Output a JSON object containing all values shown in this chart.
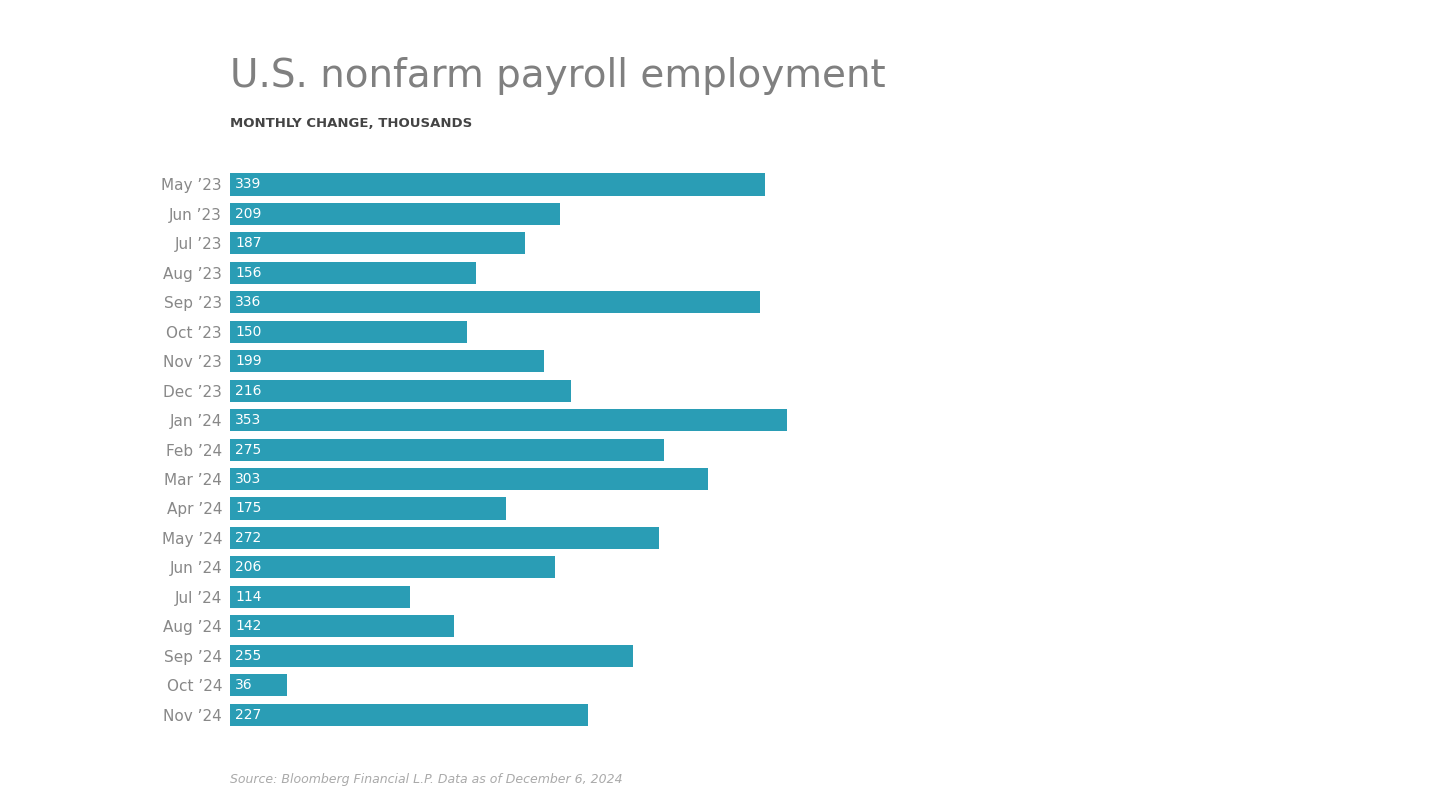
{
  "title": "U.S. nonfarm payroll employment",
  "subtitle": "MONTHLY CHANGE, THOUSANDS",
  "source": "Source: Bloomberg Financial L.P. Data as of December 6, 2024",
  "categories": [
    "May ’23",
    "Jun ’23",
    "Jul ’23",
    "Aug ’23",
    "Sep ’23",
    "Oct ’23",
    "Nov ’23",
    "Dec ’23",
    "Jan ’24",
    "Feb ’24",
    "Mar ’24",
    "Apr ’24",
    "May ’24",
    "Jun ’24",
    "Jul ’24",
    "Aug ’24",
    "Sep ’24",
    "Oct ’24",
    "Nov ’24"
  ],
  "values": [
    339,
    209,
    187,
    156,
    336,
    150,
    199,
    216,
    353,
    275,
    303,
    175,
    272,
    206,
    114,
    142,
    255,
    36,
    227
  ],
  "bar_color": "#2a9db5",
  "label_color": "#ffffff",
  "title_color": "#808080",
  "subtitle_color": "#444444",
  "background_color": "#ffffff",
  "category_color": "#888888",
  "source_color": "#aaaaaa",
  "title_fontsize": 28,
  "subtitle_fontsize": 9.5,
  "label_fontsize": 10,
  "category_fontsize": 11,
  "source_fontsize": 9,
  "bar_height": 0.75,
  "xlim_max": 420
}
